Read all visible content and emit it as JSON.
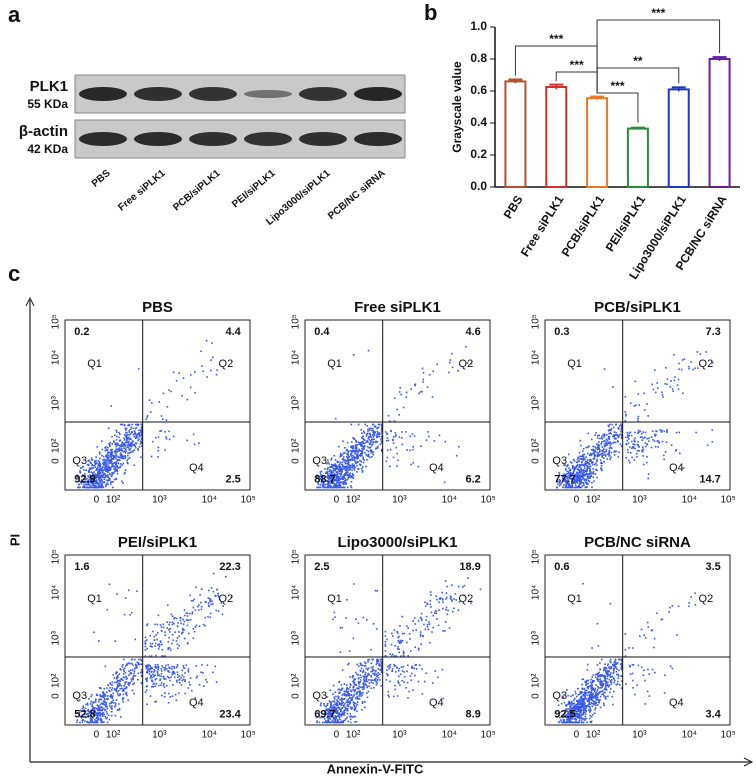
{
  "panel_labels": [
    "a",
    "b",
    "c"
  ],
  "blot": {
    "rows": [
      {
        "name": "PLK1",
        "size": "55 KDa"
      },
      {
        "name": "β-actin",
        "size": "42 KDa"
      }
    ],
    "lanes": [
      "PBS",
      "Free siPLK1",
      "PCB/siPLK1",
      "PEI/siPLK1",
      "Lipo3000/siPLK1",
      "PCB/NC siRNA"
    ]
  },
  "chart_data": {
    "type": "bar",
    "y_label": "Grayscale value",
    "categories": [
      "PBS",
      "Free siPLK1",
      "PCB/siPLK1",
      "PEI/siPLK1",
      "Lipo3000/siPLK1",
      "PCB/NC siRNA"
    ],
    "values": [
      0.66,
      0.625,
      0.555,
      0.365,
      0.61,
      0.8
    ],
    "errors": [
      0.012,
      0.015,
      0.01,
      0.006,
      0.013,
      0.012
    ],
    "colors": [
      "#b5502a",
      "#d0302a",
      "#e8782a",
      "#2e8b3a",
      "#2038c0",
      "#6a1fa0"
    ],
    "ylim": [
      0,
      1
    ],
    "yticks": [
      {
        "value": 0,
        "label": "0.0"
      },
      0.2,
      0.4,
      0.6,
      0.8,
      {
        "value": 1,
        "label": "1.0"
      }
    ],
    "annotations": [
      "***",
      "***",
      "***",
      "**",
      "***"
    ]
  },
  "flow": {
    "y_label": "PI",
    "x_label": "Annexin-V-FITC",
    "quadrant_names": [
      "Q1",
      "Q2",
      "Q3",
      "Q4"
    ],
    "axis_ticks": [
      "0",
      "10²",
      "10³",
      "10⁴",
      "10⁵"
    ],
    "plots": [
      {
        "title": "PBS",
        "quadrants": [
          0.2,
          4.4,
          92.9,
          2.5
        ]
      },
      {
        "title": "Free siPLK1",
        "quadrants": [
          0.4,
          4.6,
          88.7,
          6.2
        ]
      },
      {
        "title": "PCB/siPLK1",
        "quadrants": [
          0.3,
          7.3,
          77.7,
          14.7
        ]
      },
      {
        "title": "PEI/siPLK1",
        "quadrants": [
          1.6,
          22.3,
          52.8,
          23.4
        ]
      },
      {
        "title": "Lipo3000/siPLK1",
        "quadrants": [
          2.5,
          18.9,
          69.7,
          8.9
        ]
      },
      {
        "title": "PCB/NC siRNA",
        "quadrants": [
          0.6,
          3.5,
          92.5,
          3.4
        ]
      }
    ]
  }
}
